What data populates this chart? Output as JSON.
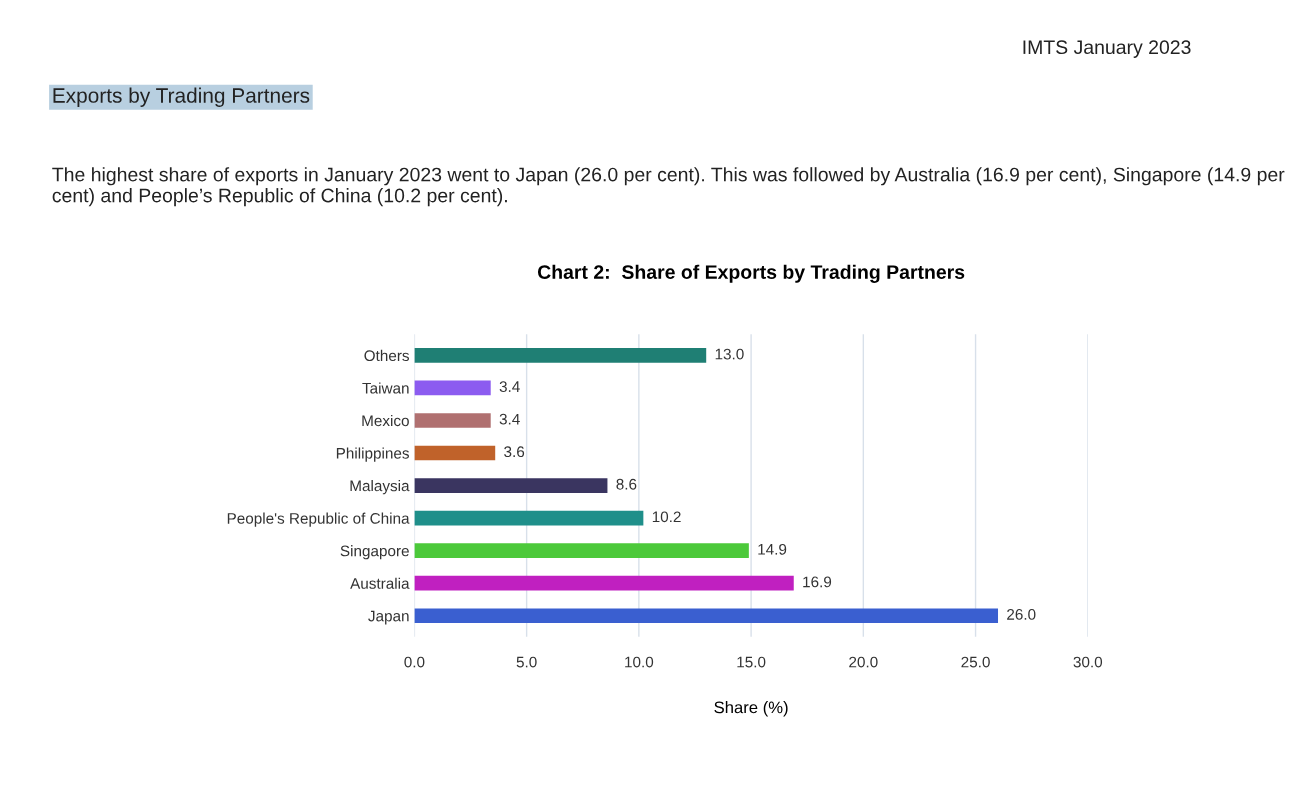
{
  "chart_data": {
    "type": "bar",
    "orientation": "horizontal",
    "title": "Chart 2:  Share of Exports by Trading Partners",
    "xlabel": "Share (%)",
    "annotations": [
      "IMTS January 2023",
      "Exports by Trading Partners",
      "The highest share of exports in January 2023 went to Japan (26.0 per cent). This was followed by Australia (16.9 per cent), Singapore (14.9 per cent) and People’s Republic of China (10.2 per cent)."
    ],
    "categories": [
      "Others",
      "Taiwan",
      "Mexico",
      "Philippines",
      "Malaysia",
      "People's Republic of China",
      "Singapore",
      "Australia",
      "Japan"
    ],
    "values": [
      13.0,
      3.4,
      3.4,
      3.6,
      8.6,
      10.2,
      14.9,
      16.9,
      26.0
    ],
    "value_labels": [
      "13.0",
      "3.4",
      "3.4",
      "3.6",
      "8.6",
      "10.2",
      "14.9",
      "16.9",
      "26.0"
    ],
    "colors": [
      "#1f7f74",
      "#8c5cf0",
      "#b07070",
      "#c0622a",
      "#3a3560",
      "#1f8f8a",
      "#4cc93a",
      "#c020c0",
      "#3a5fd0"
    ],
    "xlim": [
      0,
      30
    ],
    "xticks": [
      {
        "value": 0,
        "label": "0.0"
      },
      {
        "value": 5,
        "label": "5.0"
      },
      {
        "value": 10,
        "label": "10.0"
      },
      {
        "value": 15,
        "label": "15.0"
      },
      {
        "value": 20,
        "label": "20.0"
      },
      {
        "value": 25,
        "label": "25.0"
      },
      {
        "value": 30,
        "label": "30.0"
      }
    ],
    "grid": "x"
  }
}
